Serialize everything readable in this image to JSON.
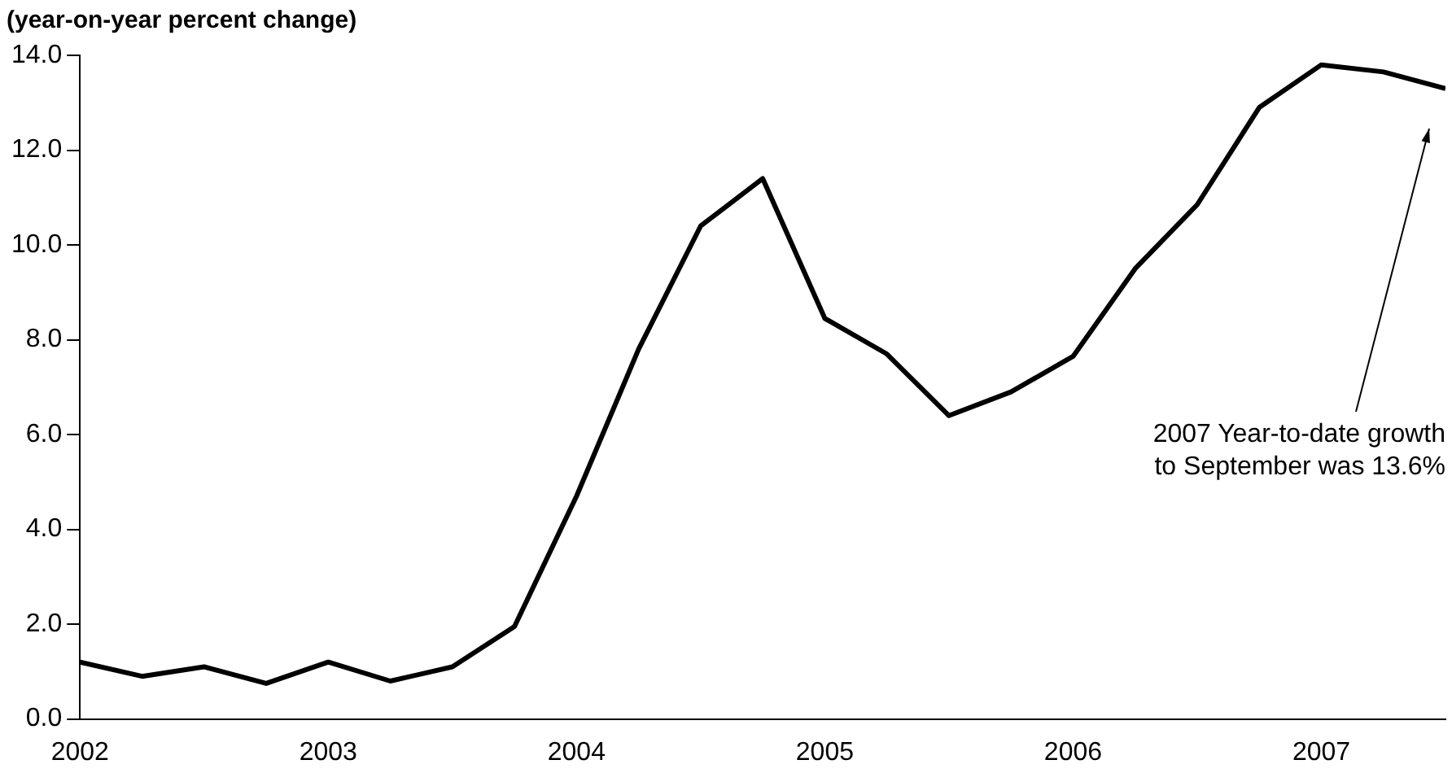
{
  "chart_data": {
    "type": "line",
    "title": "(year-on-year percent change)",
    "x": [
      2002,
      2002.25,
      2002.5,
      2002.75,
      2003,
      2003.25,
      2003.5,
      2003.75,
      2004,
      2004.25,
      2004.5,
      2004.75,
      2005,
      2005.25,
      2005.5,
      2005.75,
      2006,
      2006.25,
      2006.5,
      2006.75,
      2007,
      2007.25,
      2007.5
    ],
    "series": [
      {
        "color": "#000000",
        "values": [
          1.2,
          0.9,
          1.1,
          0.75,
          1.2,
          0.8,
          1.1,
          1.95,
          4.7,
          7.8,
          10.4,
          11.4,
          8.45,
          7.7,
          6.4,
          6.9,
          7.65,
          9.5,
          10.85,
          12.9,
          13.8,
          13.65,
          13.3
        ]
      }
    ],
    "xlim": [
      2002,
      2007.5
    ],
    "xticks": [
      2002,
      2003,
      2004,
      2005,
      2006,
      2007
    ],
    "ylim": [
      0,
      14
    ],
    "yticks": [
      {
        "value": 0,
        "label": "0.0"
      },
      {
        "value": 2,
        "label": "2.0"
      },
      {
        "value": 4,
        "label": "4.0"
      },
      {
        "value": 6,
        "label": "6.0"
      },
      {
        "value": 8,
        "label": "8.0"
      },
      {
        "value": 10,
        "label": "10.0"
      },
      {
        "value": 12,
        "label": "12.0"
      },
      {
        "value": 14,
        "label": "14.0"
      }
    ],
    "grid": false,
    "legend": false,
    "marker": "none",
    "line_style": "solid",
    "annotations": [
      "2007 Year-to-date growth\nto September was 13.6%"
    ]
  }
}
